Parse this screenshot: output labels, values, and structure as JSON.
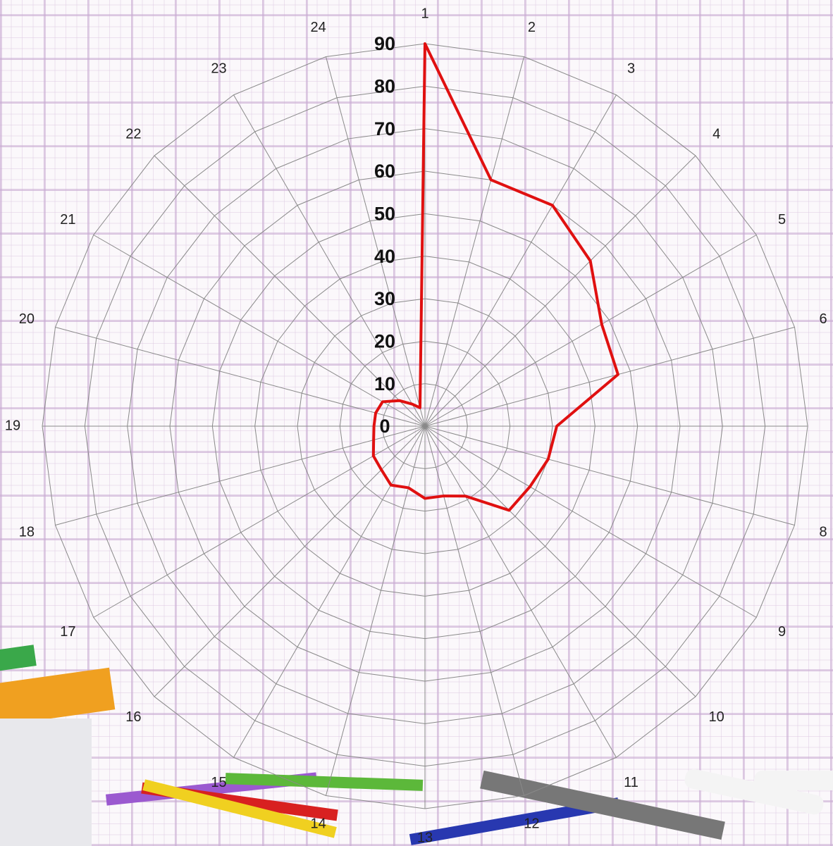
{
  "chart_data": {
    "type": "radar",
    "categories": [
      "1",
      "2",
      "3",
      "4",
      "5",
      "6",
      "7",
      "8",
      "9",
      "10",
      "11",
      "12",
      "13",
      "14",
      "15",
      "16",
      "17",
      "18",
      "19",
      "20",
      "21",
      "22",
      "23",
      "24"
    ],
    "series": [
      {
        "color": "#e01010",
        "values": [
          90,
          60,
          60,
          55,
          48,
          47,
          31,
          30,
          28.5,
          28,
          19,
          17,
          17,
          15,
          16,
          14.5,
          14,
          12.5,
          12,
          12,
          11.5,
          8.5,
          6,
          4.5
        ]
      }
    ],
    "ylim": [
      0,
      90
    ],
    "yticks": [
      0,
      10,
      20,
      30,
      40,
      50,
      60,
      70,
      80,
      90
    ],
    "grid": true
  }
}
